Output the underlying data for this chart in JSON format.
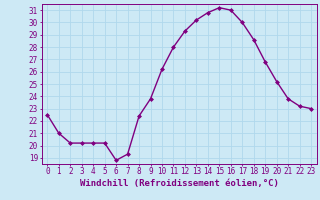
{
  "x": [
    0,
    1,
    2,
    3,
    4,
    5,
    6,
    7,
    8,
    9,
    10,
    11,
    12,
    13,
    14,
    15,
    16,
    17,
    18,
    19,
    20,
    21,
    22,
    23
  ],
  "y": [
    22.5,
    21.0,
    20.2,
    20.2,
    20.2,
    20.2,
    18.8,
    19.3,
    22.4,
    23.8,
    26.2,
    28.0,
    29.3,
    30.2,
    30.8,
    31.2,
    31.0,
    30.0,
    28.6,
    26.8,
    25.2,
    23.8,
    23.2,
    23.0
  ],
  "line_color": "#800080",
  "marker": "D",
  "marker_size": 2.0,
  "bg_color": "#cde9f5",
  "grid_color": "#b0d8ec",
  "xlabel": "Windchill (Refroidissement éolien,°C)",
  "ylabel_ticks": [
    19,
    20,
    21,
    22,
    23,
    24,
    25,
    26,
    27,
    28,
    29,
    30,
    31
  ],
  "xlim": [
    -0.5,
    23.5
  ],
  "ylim": [
    18.5,
    31.5
  ],
  "xtick_labels": [
    "0",
    "1",
    "2",
    "3",
    "4",
    "5",
    "6",
    "7",
    "8",
    "9",
    "10",
    "11",
    "12",
    "13",
    "14",
    "15",
    "16",
    "17",
    "18",
    "19",
    "20",
    "21",
    "22",
    "23"
  ],
  "tick_color": "#800080",
  "tick_fontsize": 5.5,
  "xlabel_fontsize": 6.5,
  "line_width": 1.0
}
